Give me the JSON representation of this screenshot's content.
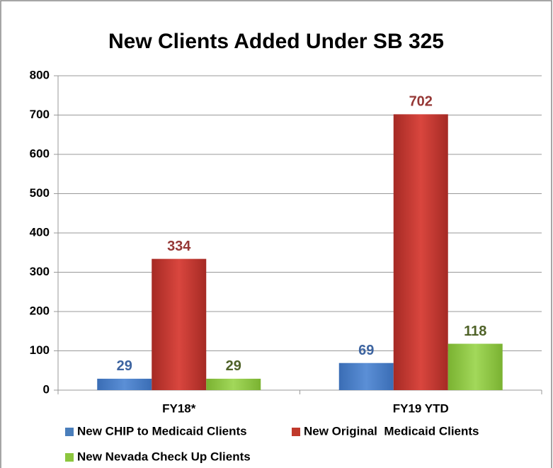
{
  "chart_data": {
    "type": "bar",
    "title": "New Clients Added Under SB 325",
    "categories": [
      "FY18*",
      "FY19 YTD"
    ],
    "series": [
      {
        "name": "New CHIP to Medicaid Clients",
        "color": "#4a7ebb",
        "label_color": "#3d64a0",
        "values": [
          29,
          69
        ]
      },
      {
        "name": "New Original  Medicaid Clients",
        "color": "#c0392b",
        "label_color": "#953735",
        "values": [
          334,
          702
        ]
      },
      {
        "name": "New Nevada Check Up Clients",
        "color": "#8cc63e",
        "label_color": "#4f6228",
        "values": [
          29,
          118
        ]
      }
    ],
    "ylim": [
      0,
      800
    ],
    "yticks": [
      0,
      100,
      200,
      300,
      400,
      500,
      600,
      700,
      800
    ],
    "grid": true,
    "legend": "bottom"
  }
}
